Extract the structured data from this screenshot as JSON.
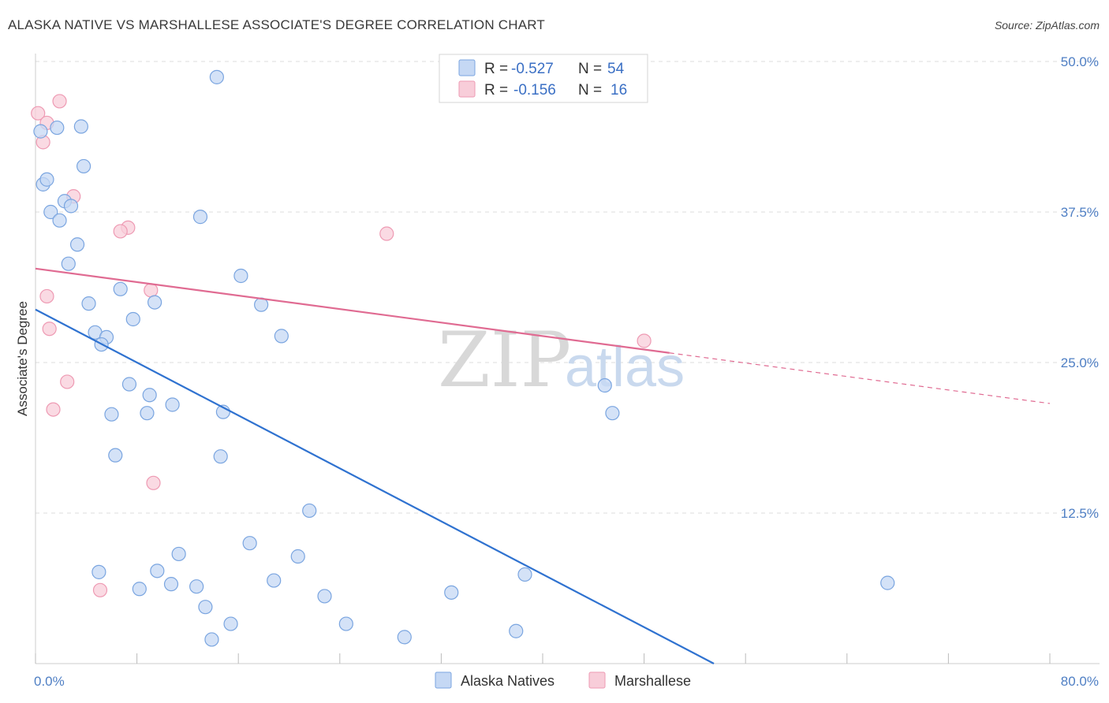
{
  "title": "ALASKA NATIVE VS MARSHALLESE ASSOCIATE'S DEGREE CORRELATION CHART",
  "source": "Source: ZipAtlas.com",
  "watermark": {
    "zip": "ZIP",
    "atlas": "atlas"
  },
  "colors": {
    "blue_fill": "#c5d8f4",
    "blue_stroke": "#7aa5e0",
    "blue_line": "#2f72d0",
    "pink_fill": "#f8cdd9",
    "pink_stroke": "#ee9ab3",
    "pink_line": "#e06b92",
    "grid": "#dddddd",
    "tick_text": "#4f7fc4"
  },
  "legend": {
    "rows": [
      {
        "r_label": "R =",
        "r_value": "-0.527",
        "n_label": "N =",
        "n_value": "54"
      },
      {
        "r_label": "R =",
        "r_value": "-0.156",
        "n_label": "N =",
        "n_value": "16"
      }
    ]
  },
  "chart_data": {
    "type": "scatter",
    "title": "ALASKA NATIVE VS MARSHALLESE ASSOCIATE'S DEGREE CORRELATION CHART",
    "xlabel": "",
    "ylabel": "Associate's Degree",
    "xlim": [
      0,
      80
    ],
    "ylim": [
      0,
      50
    ],
    "x_tick_labels": [
      "0.0%",
      "80.0%"
    ],
    "y_ticks": [
      12.5,
      25.0,
      37.5,
      50.0
    ],
    "y_tick_labels": [
      "12.5%",
      "25.0%",
      "37.5%",
      "50.0%"
    ],
    "legend_position": "top-center",
    "series": [
      {
        "name": "Alaska Natives",
        "r": -0.527,
        "n": 54,
        "points": [
          [
            0.4,
            44.2
          ],
          [
            1.7,
            44.5
          ],
          [
            3.6,
            44.6
          ],
          [
            14.3,
            48.7
          ],
          [
            3.8,
            41.3
          ],
          [
            0.6,
            39.8
          ],
          [
            0.9,
            40.2
          ],
          [
            1.2,
            37.5
          ],
          [
            2.3,
            38.4
          ],
          [
            2.8,
            38.0
          ],
          [
            1.9,
            36.8
          ],
          [
            13.0,
            37.1
          ],
          [
            3.3,
            34.8
          ],
          [
            2.6,
            33.2
          ],
          [
            16.2,
            32.2
          ],
          [
            6.7,
            31.1
          ],
          [
            4.2,
            29.9
          ],
          [
            9.4,
            30.0
          ],
          [
            17.8,
            29.8
          ],
          [
            7.7,
            28.6
          ],
          [
            4.7,
            27.5
          ],
          [
            5.6,
            27.1
          ],
          [
            5.2,
            26.5
          ],
          [
            19.4,
            27.2
          ],
          [
            7.4,
            23.2
          ],
          [
            9.0,
            22.3
          ],
          [
            10.8,
            21.5
          ],
          [
            6.0,
            20.7
          ],
          [
            8.8,
            20.8
          ],
          [
            14.8,
            20.9
          ],
          [
            44.9,
            23.1
          ],
          [
            45.5,
            20.8
          ],
          [
            6.3,
            17.3
          ],
          [
            14.6,
            17.2
          ],
          [
            21.6,
            12.7
          ],
          [
            16.9,
            10.0
          ],
          [
            11.3,
            9.1
          ],
          [
            20.7,
            8.9
          ],
          [
            5.0,
            7.6
          ],
          [
            9.6,
            7.7
          ],
          [
            8.2,
            6.2
          ],
          [
            10.7,
            6.6
          ],
          [
            12.7,
            6.4
          ],
          [
            18.8,
            6.9
          ],
          [
            22.8,
            5.6
          ],
          [
            32.8,
            5.9
          ],
          [
            38.6,
            7.4
          ],
          [
            67.2,
            6.7
          ],
          [
            13.4,
            4.7
          ],
          [
            15.4,
            3.3
          ],
          [
            24.5,
            3.3
          ],
          [
            13.9,
            2.0
          ],
          [
            29.1,
            2.2
          ],
          [
            37.9,
            2.7
          ]
        ],
        "trend": {
          "x": [
            0,
            53.5
          ],
          "y": [
            29.4,
            0
          ]
        }
      },
      {
        "name": "Marshallese",
        "r": -0.156,
        "n": 16,
        "points": [
          [
            0.2,
            45.7
          ],
          [
            0.9,
            44.9
          ],
          [
            0.6,
            43.3
          ],
          [
            1.9,
            46.7
          ],
          [
            3.0,
            38.8
          ],
          [
            7.3,
            36.2
          ],
          [
            6.7,
            35.9
          ],
          [
            27.7,
            35.7
          ],
          [
            0.9,
            30.5
          ],
          [
            9.1,
            31.0
          ],
          [
            1.1,
            27.8
          ],
          [
            48.0,
            26.8
          ],
          [
            2.5,
            23.4
          ],
          [
            1.4,
            21.1
          ],
          [
            9.3,
            15.0
          ],
          [
            5.1,
            6.1
          ]
        ],
        "trend": {
          "x": [
            0,
            50
          ],
          "y": [
            32.8,
            25.8
          ]
        },
        "trend_dashed": {
          "x": [
            50,
            80
          ],
          "y": [
            25.8,
            21.6
          ]
        }
      }
    ]
  }
}
